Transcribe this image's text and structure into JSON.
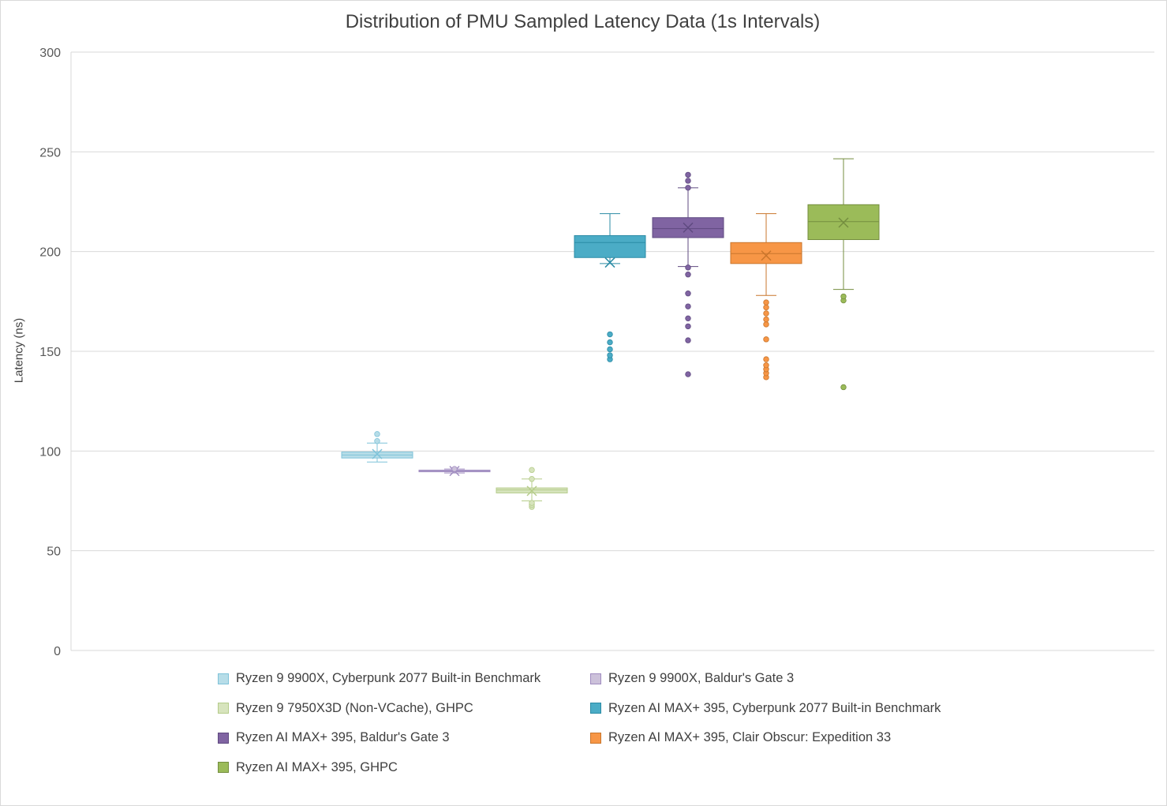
{
  "chart_data": {
    "type": "boxplot",
    "title": "Distribution of PMU Sampled Latency Data (1s Intervals)",
    "xlabel": "",
    "ylabel": "Latency (ns)",
    "ylim": [
      0,
      300
    ],
    "yticks": [
      0,
      50,
      100,
      150,
      200,
      250,
      300
    ],
    "grid": true,
    "legend_position": "bottom",
    "series": [
      {
        "name": "Ryzen 9 9900X, Cyberpunk 2077 Built-in Benchmark",
        "color": "#b7dde8",
        "stroke": "#7fc3d9",
        "min": 94.5,
        "q1": 96.5,
        "median": 98,
        "q3": 99.5,
        "max": 104,
        "mean": 98.5,
        "outliers": [
          105,
          108.5
        ]
      },
      {
        "name": "Ryzen 9 9900X, Baldur's Gate 3",
        "color": "#ccc1da",
        "stroke": "#a08cc0",
        "min": 89,
        "q1": 89.6,
        "median": 90,
        "q3": 90.4,
        "max": 91,
        "mean": 90,
        "outliers": [
          91
        ]
      },
      {
        "name": "Ryzen 9 7950X3D (Non-VCache), GHPC",
        "color": "#d7e4bd",
        "stroke": "#b5cc8a",
        "min": 75,
        "q1": 79,
        "median": 80.5,
        "q3": 81.5,
        "max": 86,
        "mean": 80,
        "outliers": [
          72,
          73,
          74,
          86,
          90.5
        ]
      },
      {
        "name": "Ryzen AI MAX+ 395, Cyberpunk 2077 Built-in Benchmark",
        "color": "#4bacc6",
        "stroke": "#2b8ba5",
        "min": 194,
        "q1": 197,
        "median": 204.5,
        "q3": 208,
        "max": 219,
        "mean": 194.5,
        "outliers": [
          146,
          148,
          151,
          154.5,
          158.5
        ]
      },
      {
        "name": "Ryzen AI MAX+ 395, Baldur's Gate 3",
        "color": "#8064a2",
        "stroke": "#5f4a80",
        "min": 192.5,
        "q1": 207,
        "median": 211.5,
        "q3": 217,
        "max": 232,
        "mean": 212,
        "outliers": [
          138.5,
          155.5,
          162.5,
          166.5,
          172.5,
          179,
          188.5,
          192,
          232,
          235.5,
          238.5
        ]
      },
      {
        "name": "Ryzen AI MAX+ 395, Clair Obscur: Expedition 33",
        "color": "#f79646",
        "stroke": "#c9762c",
        "min": 178,
        "q1": 194,
        "median": 199,
        "q3": 204.5,
        "max": 219,
        "mean": 198,
        "outliers": [
          137,
          139,
          141,
          143,
          146,
          156,
          163.5,
          166,
          169,
          172,
          174.5
        ]
      },
      {
        "name": "Ryzen AI MAX+ 395, GHPC",
        "color": "#9bbb59",
        "stroke": "#748e3f",
        "min": 181,
        "q1": 206,
        "median": 215,
        "q3": 223.5,
        "max": 246.5,
        "mean": 214.5,
        "outliers": [
          132,
          175.5,
          177.5
        ]
      }
    ]
  }
}
